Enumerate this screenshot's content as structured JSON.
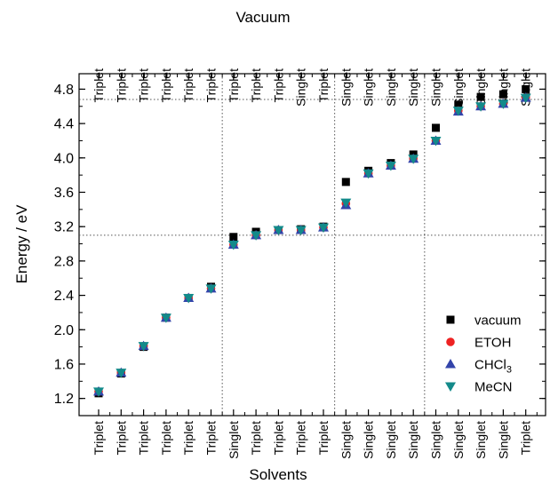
{
  "chart_data": {
    "type": "scatter",
    "xlabel_bottom": "Solvents",
    "xlabel_top": "Vacuum",
    "ylabel": "Energy / eV",
    "ylim": [
      1.0,
      4.98
    ],
    "yticks": [
      "1.2",
      "1.6",
      "2.0",
      "2.4",
      "2.8",
      "3.2",
      "3.6",
      "4.0",
      "4.4",
      "4.8"
    ],
    "categories_top": [
      "Triplet",
      "Triplet",
      "Triplet",
      "Triplet",
      "Triplet",
      "Triplet",
      "Triplet",
      "Triplet",
      "Triplet",
      "Singlet",
      "Triplet",
      "Singlet",
      "Singlet",
      "Singlet",
      "Singlet",
      "Singlet",
      "Singlet",
      "Singlet",
      "Singlet",
      "Singlet"
    ],
    "categories_bottom": [
      "Triplet",
      "Triplet",
      "Triplet",
      "Triplet",
      "Triplet",
      "Triplet",
      "Singlet",
      "Triplet",
      "Triplet",
      "Triplet",
      "Triplet",
      "Singlet",
      "Singlet",
      "Singlet",
      "Singlet",
      "Singlet",
      "Singlet",
      "Singlet",
      "Singlet",
      "Triplet"
    ],
    "reference_lines": {
      "horizontal": [
        3.1,
        4.68
      ],
      "vertical_after_index": [
        5,
        10,
        14
      ]
    },
    "legend_position": "bottom-right",
    "series": [
      {
        "name": "vacuum",
        "marker": "square",
        "color": "#000000",
        "values": [
          1.26,
          1.49,
          1.8,
          2.14,
          2.37,
          2.5,
          3.08,
          3.14,
          3.16,
          3.17,
          3.2,
          3.72,
          3.85,
          3.94,
          4.04,
          4.35,
          4.62,
          4.71,
          4.74,
          4.8
        ]
      },
      {
        "name": "ETOH",
        "marker": "circle",
        "color": "#ee2222",
        "values": [
          1.28,
          1.5,
          1.81,
          2.14,
          2.37,
          2.48,
          2.99,
          3.1,
          3.16,
          3.16,
          3.19,
          3.47,
          3.82,
          3.91,
          3.99,
          4.2,
          4.55,
          4.6,
          4.63,
          4.7
        ]
      },
      {
        "name": "CHCl3",
        "legend_label": "CHCl",
        "legend_sub": "3",
        "marker": "triangle-up",
        "color": "#3344aa",
        "values": [
          1.28,
          1.5,
          1.81,
          2.14,
          2.37,
          2.48,
          2.99,
          3.1,
          3.16,
          3.16,
          3.19,
          3.45,
          3.82,
          3.91,
          3.99,
          4.2,
          4.54,
          4.6,
          4.63,
          4.7
        ]
      },
      {
        "name": "MeCN",
        "marker": "triangle-down",
        "color": "#138a8a",
        "values": [
          1.28,
          1.5,
          1.81,
          2.14,
          2.37,
          2.48,
          2.99,
          3.1,
          3.16,
          3.16,
          3.19,
          3.48,
          3.82,
          3.91,
          3.99,
          4.2,
          4.55,
          4.6,
          4.63,
          4.7
        ]
      }
    ]
  }
}
